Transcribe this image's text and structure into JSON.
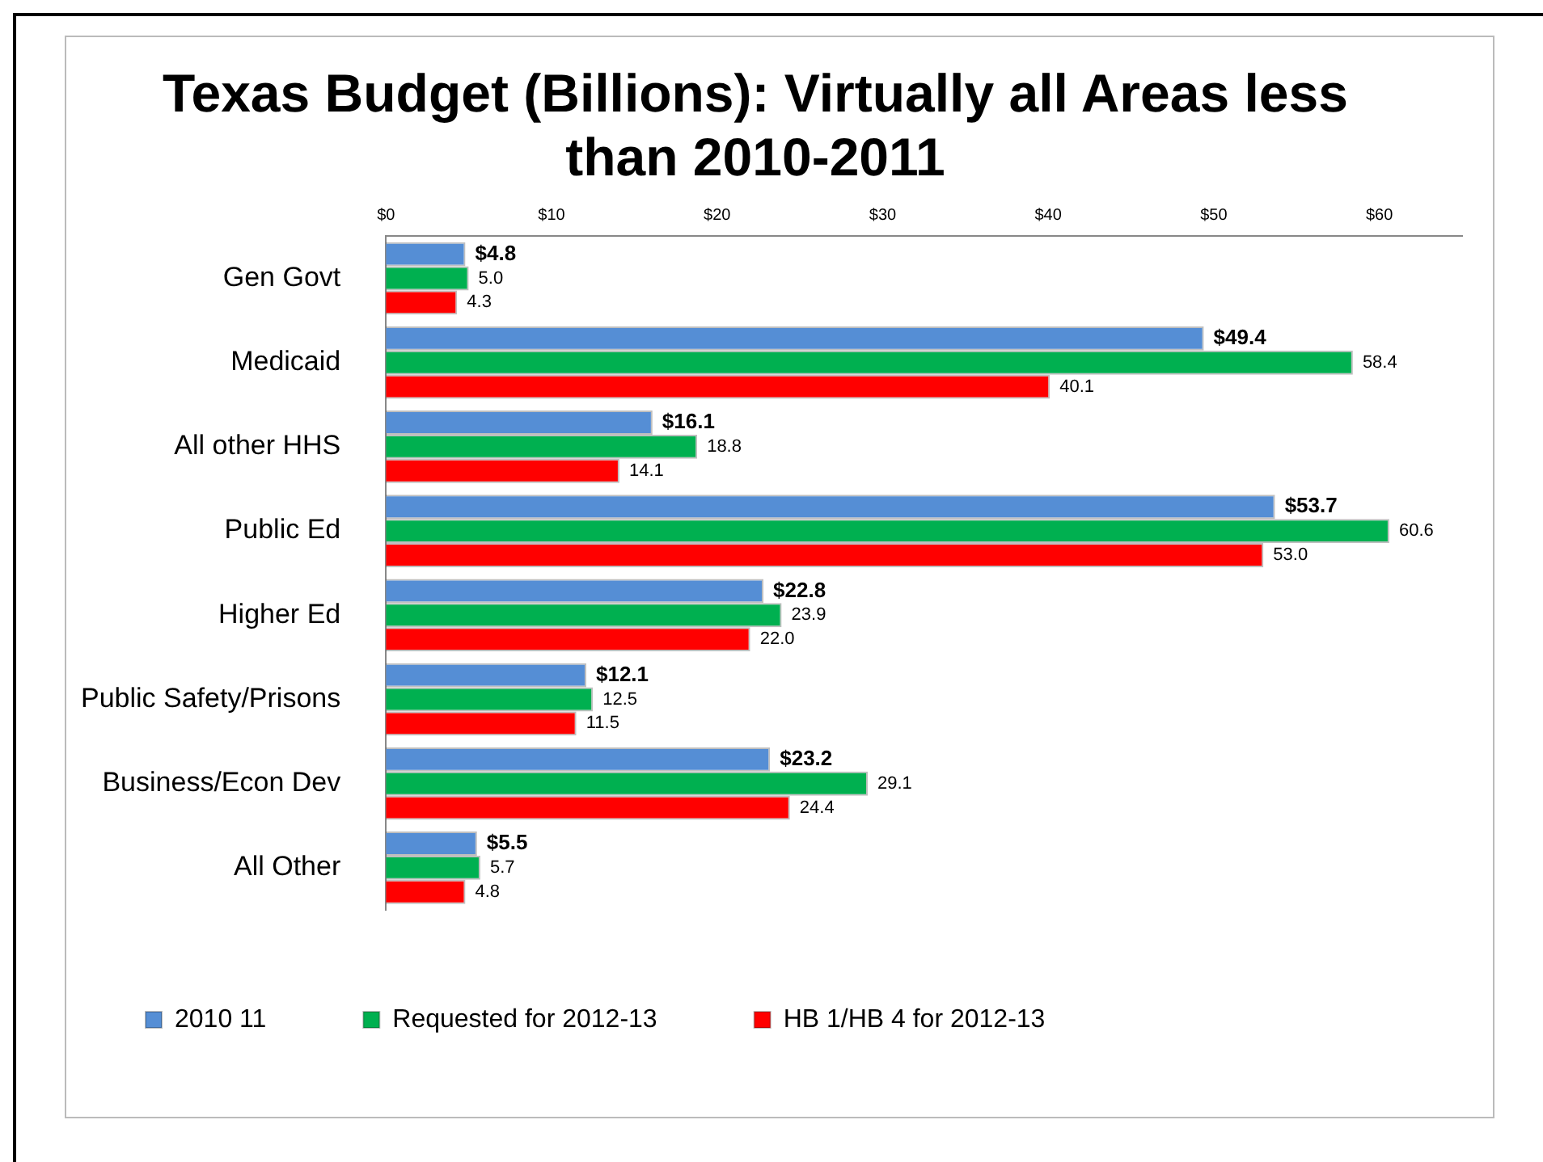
{
  "chart_data": {
    "type": "bar",
    "orientation": "horizontal",
    "title": [
      "Texas Budget (Billions): Virtually all Areas less",
      "than 2010-2011"
    ],
    "categories": [
      "Gen Govt",
      "Medicaid",
      "All other HHS",
      "Public Ed",
      "Higher Ed",
      "Public Safety/Prisons",
      "Business/Econ Dev",
      "All Other"
    ],
    "series": [
      {
        "name": "2010 11",
        "color": "#558ed5",
        "values": [
          4.8,
          49.4,
          16.1,
          53.7,
          22.8,
          12.1,
          23.2,
          5.5
        ],
        "value_labels": [
          "$4.8",
          "$49.4",
          "$16.1",
          "$53.7",
          "$22.8",
          "$12.1",
          "$23.2",
          "$5.5"
        ]
      },
      {
        "name": "Requested for 2012-13",
        "color": "#00b050",
        "values": [
          5.0,
          58.4,
          18.8,
          60.6,
          23.9,
          12.5,
          29.1,
          5.7
        ],
        "value_labels": [
          "5.0",
          "58.4",
          "18.8",
          "60.6",
          "23.9",
          "12.5",
          "29.1",
          "5.7"
        ]
      },
      {
        "name": "HB 1/HB 4 for 2012-13",
        "color": "#ff0000",
        "values": [
          4.3,
          40.1,
          14.1,
          53.0,
          22.0,
          11.5,
          24.4,
          4.8
        ],
        "value_labels": [
          "4.3",
          "40.1",
          "14.1",
          "53.0",
          "22.0",
          "11.5",
          "24.4",
          "4.8"
        ]
      }
    ],
    "xlim": [
      0,
      65
    ],
    "xticks": [
      {
        "value": 0,
        "label": "$0"
      },
      {
        "value": 10,
        "label": "$10"
      },
      {
        "value": 20,
        "label": "$20"
      },
      {
        "value": 30,
        "label": "$30"
      },
      {
        "value": 40,
        "label": "$40"
      },
      {
        "value": 50,
        "label": "$50"
      },
      {
        "value": 60,
        "label": "$60"
      }
    ],
    "grid": false,
    "legend": "bottom"
  }
}
